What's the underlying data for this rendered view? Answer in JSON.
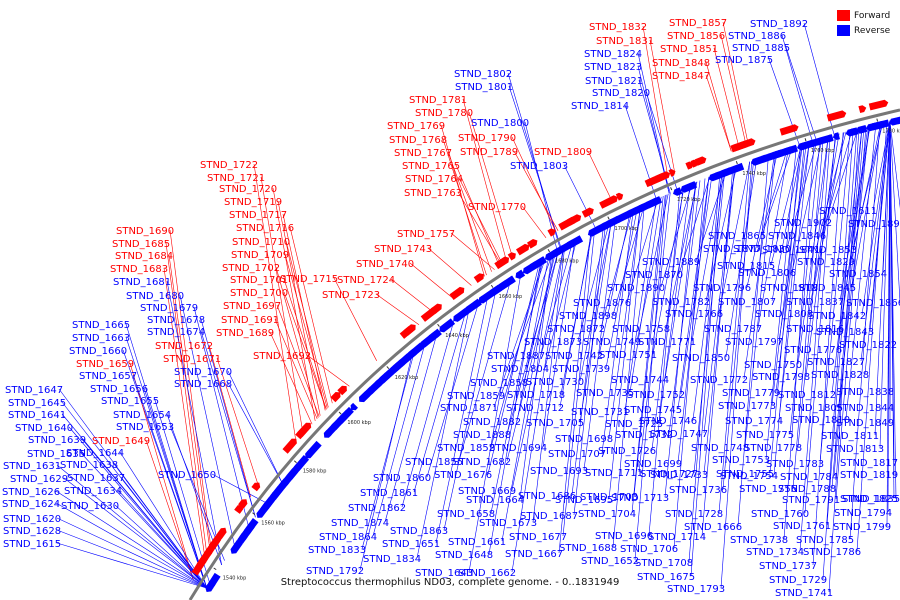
{
  "legend": {
    "forward_label": "Forward",
    "reverse_label": "Reverse",
    "forward_color": "#ff0000",
    "reverse_color": "#0000ff"
  },
  "caption": "Streptococcus thermophilus ND03, complete genome. - 0..1831949",
  "ticks": [
    "1540 kbp",
    "1560 kbp",
    "1580 kbp",
    "1600 kbp",
    "1620 kbp",
    "1640 kbp",
    "1660 kbp",
    "1680 kbp",
    "1700 kbp",
    "1720 kbp",
    "1740 kbp",
    "1760 kbp",
    "1780 kbp"
  ],
  "labels": [
    {
      "text": "STND_1832",
      "strand": "forward"
    },
    {
      "text": "STND_1857",
      "strand": "forward"
    },
    {
      "text": "STND_1892",
      "strand": "reverse"
    },
    {
      "text": "STND_1831",
      "strand": "forward"
    },
    {
      "text": "STND_1856",
      "strand": "forward"
    },
    {
      "text": "STND_1886",
      "strand": "reverse"
    },
    {
      "text": "STND_1824",
      "strand": "reverse"
    },
    {
      "text": "STND_1851",
      "strand": "forward"
    },
    {
      "text": "STND_1885",
      "strand": "reverse"
    },
    {
      "text": "STND_1823",
      "strand": "reverse"
    },
    {
      "text": "STND_1848",
      "strand": "forward"
    },
    {
      "text": "STND_1875",
      "strand": "reverse"
    },
    {
      "text": "STND_1821",
      "strand": "reverse"
    },
    {
      "text": "STND_1847",
      "strand": "forward"
    },
    {
      "text": "STND_1802",
      "strand": "reverse"
    },
    {
      "text": "STND_1820",
      "strand": "reverse"
    },
    {
      "text": "STND_1801",
      "strand": "reverse"
    },
    {
      "text": "STND_1814",
      "strand": "reverse"
    },
    {
      "text": "STND_1781",
      "strand": "forward"
    },
    {
      "text": "STND_1780",
      "strand": "forward"
    },
    {
      "text": "STND_1769",
      "strand": "forward"
    },
    {
      "text": "STND_1800",
      "strand": "reverse"
    },
    {
      "text": "STND_1768",
      "strand": "forward"
    },
    {
      "text": "STND_1790",
      "strand": "forward"
    },
    {
      "text": "STND_1767",
      "strand": "forward"
    },
    {
      "text": "STND_1789",
      "strand": "forward"
    },
    {
      "text": "STND_1809",
      "strand": "forward"
    },
    {
      "text": "STND_1765",
      "strand": "forward"
    },
    {
      "text": "STND_1803",
      "strand": "reverse"
    },
    {
      "text": "STND_1764",
      "strand": "forward"
    },
    {
      "text": "STND_1763",
      "strand": "forward"
    },
    {
      "text": "STND_1770",
      "strand": "forward"
    },
    {
      "text": "STND_1722",
      "strand": "forward"
    },
    {
      "text": "STND_1721",
      "strand": "forward"
    },
    {
      "text": "STND_1720",
      "strand": "forward"
    },
    {
      "text": "STND_1719",
      "strand": "forward"
    },
    {
      "text": "STND_1717",
      "strand": "forward"
    },
    {
      "text": "STND_1716",
      "strand": "forward"
    },
    {
      "text": "STND_1710",
      "strand": "forward"
    },
    {
      "text": "STND_1709",
      "strand": "forward"
    },
    {
      "text": "STND_1702",
      "strand": "forward"
    },
    {
      "text": "STND_1701",
      "strand": "forward"
    },
    {
      "text": "STND_1715",
      "strand": "forward"
    },
    {
      "text": "STND_1724",
      "strand": "forward"
    },
    {
      "text": "STND_1700",
      "strand": "forward"
    },
    {
      "text": "STND_1723",
      "strand": "forward"
    },
    {
      "text": "STND_1697",
      "strand": "forward"
    },
    {
      "text": "STND_1691",
      "strand": "forward"
    },
    {
      "text": "STND_1689",
      "strand": "forward"
    },
    {
      "text": "STND_1692",
      "strand": "forward"
    },
    {
      "text": "STND_1757",
      "strand": "forward"
    },
    {
      "text": "STND_1743",
      "strand": "forward"
    },
    {
      "text": "STND_1740",
      "strand": "forward"
    },
    {
      "text": "STND_1690",
      "strand": "forward"
    },
    {
      "text": "STND_1685",
      "strand": "forward"
    },
    {
      "text": "STND_1684",
      "strand": "forward"
    },
    {
      "text": "STND_1683",
      "strand": "forward"
    },
    {
      "text": "STND_1681",
      "strand": "reverse"
    },
    {
      "text": "STND_1680",
      "strand": "reverse"
    },
    {
      "text": "STND_1679",
      "strand": "reverse"
    },
    {
      "text": "STND_1678",
      "strand": "reverse"
    },
    {
      "text": "STND_1674",
      "strand": "reverse"
    },
    {
      "text": "STND_1672",
      "strand": "forward"
    },
    {
      "text": "STND_1671",
      "strand": "forward"
    },
    {
      "text": "STND_1670",
      "strand": "reverse"
    },
    {
      "text": "STND_1668",
      "strand": "reverse"
    },
    {
      "text": "STND_1665",
      "strand": "reverse"
    },
    {
      "text": "STND_1663",
      "strand": "reverse"
    },
    {
      "text": "STND_1660",
      "strand": "reverse"
    },
    {
      "text": "STND_1659",
      "strand": "forward"
    },
    {
      "text": "STND_1657",
      "strand": "reverse"
    },
    {
      "text": "STND_1656",
      "strand": "reverse"
    },
    {
      "text": "STND_1655",
      "strand": "reverse"
    },
    {
      "text": "STND_1654",
      "strand": "reverse"
    },
    {
      "text": "STND_1653",
      "strand": "reverse"
    },
    {
      "text": "STND_1647",
      "strand": "reverse"
    },
    {
      "text": "STND_1645",
      "strand": "reverse"
    },
    {
      "text": "STND_1641",
      "strand": "reverse"
    },
    {
      "text": "STND_1640",
      "strand": "reverse"
    },
    {
      "text": "STND_1639",
      "strand": "reverse"
    },
    {
      "text": "STND_1649",
      "strand": "forward"
    },
    {
      "text": "STND_1635",
      "strand": "reverse"
    },
    {
      "text": "STND_1644",
      "strand": "reverse"
    },
    {
      "text": "STND_1631",
      "strand": "reverse"
    },
    {
      "text": "STND_1638",
      "strand": "reverse"
    },
    {
      "text": "STND_1650",
      "strand": "reverse"
    },
    {
      "text": "STND_1629",
      "strand": "reverse"
    },
    {
      "text": "STND_1637",
      "strand": "reverse"
    },
    {
      "text": "STND_1626",
      "strand": "reverse"
    },
    {
      "text": "STND_1634",
      "strand": "reverse"
    },
    {
      "text": "STND_1624",
      "strand": "reverse"
    },
    {
      "text": "STND_1630",
      "strand": "reverse"
    },
    {
      "text": "STND_1620",
      "strand": "reverse"
    },
    {
      "text": "STND_1628",
      "strand": "reverse"
    },
    {
      "text": "STND_1615",
      "strand": "reverse"
    },
    {
      "text": "STND_1611",
      "strand": "reverse"
    },
    {
      "text": "STND_1891",
      "strand": "reverse"
    },
    {
      "text": "STND_1902",
      "strand": "reverse"
    },
    {
      "text": "STND_1865",
      "strand": "reverse"
    },
    {
      "text": "STND_1846",
      "strand": "reverse"
    },
    {
      "text": "STND_1877",
      "strand": "reverse"
    },
    {
      "text": "STND_1830",
      "strand": "reverse"
    },
    {
      "text": "STND_1841",
      "strand": "reverse"
    },
    {
      "text": "STND_1853",
      "strand": "reverse"
    },
    {
      "text": "STND_1889",
      "strand": "reverse"
    },
    {
      "text": "STND_1815",
      "strand": "reverse"
    },
    {
      "text": "STND_1829",
      "strand": "reverse"
    },
    {
      "text": "STND_1870",
      "strand": "reverse"
    },
    {
      "text": "STND_1806",
      "strand": "reverse"
    },
    {
      "text": "STND_1854",
      "strand": "reverse"
    },
    {
      "text": "STND_1890",
      "strand": "reverse"
    },
    {
      "text": "STND_1796",
      "strand": "reverse"
    },
    {
      "text": "STND_1818",
      "strand": "reverse"
    },
    {
      "text": "STND_1845",
      "strand": "reverse"
    },
    {
      "text": "STND_1876",
      "strand": "reverse"
    },
    {
      "text": "STND_1782",
      "strand": "reverse"
    },
    {
      "text": "STND_1807",
      "strand": "reverse"
    },
    {
      "text": "STND_1837",
      "strand": "reverse"
    },
    {
      "text": "STND_1866",
      "strand": "reverse"
    },
    {
      "text": "STND_1898",
      "strand": "reverse"
    },
    {
      "text": "STND_1766",
      "strand": "reverse"
    },
    {
      "text": "STND_1808",
      "strand": "reverse"
    },
    {
      "text": "STND_1842",
      "strand": "reverse"
    },
    {
      "text": "STND_1872",
      "strand": "reverse"
    },
    {
      "text": "STND_1758",
      "strand": "reverse"
    },
    {
      "text": "STND_1787",
      "strand": "reverse"
    },
    {
      "text": "STND_1816",
      "strand": "reverse"
    },
    {
      "text": "STND_1843",
      "strand": "reverse"
    },
    {
      "text": "STND_1873",
      "strand": "reverse"
    },
    {
      "text": "STND_1749",
      "strand": "reverse"
    },
    {
      "text": "STND_1771",
      "strand": "reverse"
    },
    {
      "text": "STND_1797",
      "strand": "reverse"
    },
    {
      "text": "STND_1822",
      "strand": "reverse"
    },
    {
      "text": "STND_1887",
      "strand": "reverse"
    },
    {
      "text": "STND_1742",
      "strand": "reverse"
    },
    {
      "text": "STND_1751",
      "strand": "reverse"
    },
    {
      "text": "STND_1776",
      "strand": "reverse"
    },
    {
      "text": "STND_1850",
      "strand": "reverse"
    },
    {
      "text": "STND_1804",
      "strand": "reverse"
    },
    {
      "text": "STND_1739",
      "strand": "reverse"
    },
    {
      "text": "STND_1750",
      "strand": "reverse"
    },
    {
      "text": "STND_1827",
      "strand": "reverse"
    },
    {
      "text": "STND_1858",
      "strand": "reverse"
    },
    {
      "text": "STND_1730",
      "strand": "reverse"
    },
    {
      "text": "STND_1744",
      "strand": "reverse"
    },
    {
      "text": "STND_1772",
      "strand": "reverse"
    },
    {
      "text": "STND_1798",
      "strand": "reverse"
    },
    {
      "text": "STND_1828",
      "strand": "reverse"
    },
    {
      "text": "STND_1859",
      "strand": "reverse"
    },
    {
      "text": "STND_1718",
      "strand": "reverse"
    },
    {
      "text": "STND_1735",
      "strand": "reverse"
    },
    {
      "text": "STND_1752",
      "strand": "reverse"
    },
    {
      "text": "STND_1779",
      "strand": "reverse"
    },
    {
      "text": "STND_1812",
      "strand": "reverse"
    },
    {
      "text": "STND_1838",
      "strand": "reverse"
    },
    {
      "text": "STND_1871",
      "strand": "reverse"
    },
    {
      "text": "STND_1712",
      "strand": "reverse"
    },
    {
      "text": "STND_1731",
      "strand": "reverse"
    },
    {
      "text": "STND_1745",
      "strand": "reverse"
    },
    {
      "text": "STND_1773",
      "strand": "reverse"
    },
    {
      "text": "STND_1805",
      "strand": "reverse"
    },
    {
      "text": "STND_1844",
      "strand": "reverse"
    },
    {
      "text": "STND_1882",
      "strand": "reverse"
    },
    {
      "text": "STND_1705",
      "strand": "reverse"
    },
    {
      "text": "STND_1725",
      "strand": "reverse"
    },
    {
      "text": "STND_1746",
      "strand": "reverse"
    },
    {
      "text": "STND_1774",
      "strand": "reverse"
    },
    {
      "text": "STND_1810",
      "strand": "reverse"
    },
    {
      "text": "STND_1849",
      "strand": "reverse"
    },
    {
      "text": "STND_1888",
      "strand": "reverse"
    },
    {
      "text": "STND_1698",
      "strand": "reverse"
    },
    {
      "text": "STND_1732",
      "strand": "reverse"
    },
    {
      "text": "STND_1747",
      "strand": "reverse"
    },
    {
      "text": "STND_1775",
      "strand": "reverse"
    },
    {
      "text": "STND_1811",
      "strand": "reverse"
    },
    {
      "text": "STND_1852",
      "strand": "reverse"
    },
    {
      "text": "STND_1694",
      "strand": "reverse"
    },
    {
      "text": "STND_1707",
      "strand": "reverse"
    },
    {
      "text": "STND_1726",
      "strand": "reverse"
    },
    {
      "text": "STND_1748",
      "strand": "reverse"
    },
    {
      "text": "STND_1778",
      "strand": "reverse"
    },
    {
      "text": "STND_1813",
      "strand": "reverse"
    },
    {
      "text": "STND_1855",
      "strand": "reverse"
    },
    {
      "text": "STND_1682",
      "strand": "reverse"
    },
    {
      "text": "STND_1699",
      "strand": "reverse"
    },
    {
      "text": "STND_1753",
      "strand": "reverse"
    },
    {
      "text": "STND_1783",
      "strand": "reverse"
    },
    {
      "text": "STND_1817",
      "strand": "reverse"
    },
    {
      "text": "STND_1860",
      "strand": "reverse"
    },
    {
      "text": "STND_1676",
      "strand": "reverse"
    },
    {
      "text": "STND_1693",
      "strand": "reverse"
    },
    {
      "text": "STND_1711",
      "strand": "reverse"
    },
    {
      "text": "STND_1733",
      "strand": "reverse"
    },
    {
      "text": "STND_1754",
      "strand": "reverse"
    },
    {
      "text": "STND_1784",
      "strand": "reverse"
    },
    {
      "text": "STND_1819",
      "strand": "reverse"
    },
    {
      "text": "STND_1861",
      "strand": "reverse"
    },
    {
      "text": "STND_1669",
      "strand": "reverse"
    },
    {
      "text": "STND_1686",
      "strand": "reverse"
    },
    {
      "text": "STND_1703",
      "strand": "reverse"
    },
    {
      "text": "STND_1727",
      "strand": "reverse"
    },
    {
      "text": "STND_1755",
      "strand": "reverse"
    },
    {
      "text": "STND_1788",
      "strand": "reverse"
    },
    {
      "text": "STND_1825",
      "strand": "reverse"
    },
    {
      "text": "STND_1862",
      "strand": "reverse"
    },
    {
      "text": "STND_1664",
      "strand": "reverse"
    },
    {
      "text": "STND_1695",
      "strand": "reverse"
    },
    {
      "text": "STND_1713",
      "strand": "reverse"
    },
    {
      "text": "STND_1736",
      "strand": "reverse"
    },
    {
      "text": "STND_1756",
      "strand": "reverse"
    },
    {
      "text": "STND_1791",
      "strand": "reverse"
    },
    {
      "text": "STND_1835",
      "strand": "reverse"
    },
    {
      "text": "STND_1874",
      "strand": "reverse"
    },
    {
      "text": "STND_1658",
      "strand": "reverse"
    },
    {
      "text": "STND_1673",
      "strand": "reverse"
    },
    {
      "text": "STND_1687",
      "strand": "reverse"
    },
    {
      "text": "STND_1704",
      "strand": "reverse"
    },
    {
      "text": "STND_1728",
      "strand": "reverse"
    },
    {
      "text": "STND_1760",
      "strand": "reverse"
    },
    {
      "text": "STND_1794",
      "strand": "reverse"
    },
    {
      "text": "STND_1863",
      "strand": "reverse"
    },
    {
      "text": "STND_1666",
      "strand": "reverse"
    },
    {
      "text": "STND_1761",
      "strand": "reverse"
    },
    {
      "text": "STND_1799",
      "strand": "reverse"
    },
    {
      "text": "STND_1864",
      "strand": "reverse"
    },
    {
      "text": "STND_1651",
      "strand": "reverse"
    },
    {
      "text": "STND_1661",
      "strand": "reverse"
    },
    {
      "text": "STND_1677",
      "strand": "reverse"
    },
    {
      "text": "STND_1696",
      "strand": "reverse"
    },
    {
      "text": "STND_1714",
      "strand": "reverse"
    },
    {
      "text": "STND_1738",
      "strand": "reverse"
    },
    {
      "text": "STND_1785",
      "strand": "reverse"
    },
    {
      "text": "STND_1833",
      "strand": "reverse"
    },
    {
      "text": "STND_1648",
      "strand": "reverse"
    },
    {
      "text": "STND_1667",
      "strand": "reverse"
    },
    {
      "text": "STND_1688",
      "strand": "reverse"
    },
    {
      "text": "STND_1706",
      "strand": "reverse"
    },
    {
      "text": "STND_1734",
      "strand": "reverse"
    },
    {
      "text": "STND_1786",
      "strand": "reverse"
    },
    {
      "text": "STND_1834",
      "strand": "reverse"
    },
    {
      "text": "STND_1652",
      "strand": "reverse"
    },
    {
      "text": "STND_1708",
      "strand": "reverse"
    },
    {
      "text": "STND_1737",
      "strand": "reverse"
    },
    {
      "text": "STND_1792",
      "strand": "reverse"
    },
    {
      "text": "STND_1643",
      "strand": "reverse"
    },
    {
      "text": "STND_1662",
      "strand": "reverse"
    },
    {
      "text": "STND_1675",
      "strand": "reverse"
    },
    {
      "text": "STND_1729",
      "strand": "reverse"
    },
    {
      "text": "STND_1793",
      "strand": "reverse"
    },
    {
      "text": "STND_1741",
      "strand": "reverse"
    },
    {
      "text": "STND_1795",
      "strand": "reverse"
    }
  ]
}
